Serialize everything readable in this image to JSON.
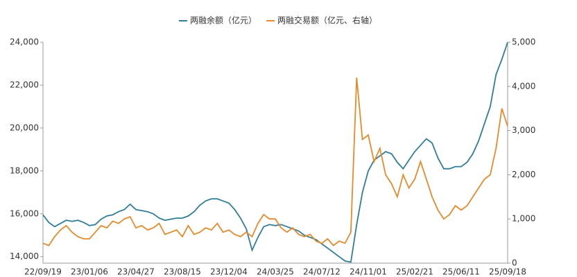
{
  "chart_data": {
    "type": "line",
    "categories": [
      "22/09/19",
      null,
      null,
      null,
      null,
      null,
      null,
      null,
      "23/01/06",
      null,
      null,
      null,
      null,
      null,
      null,
      null,
      "23/04/27",
      null,
      null,
      null,
      null,
      null,
      null,
      null,
      "23/08/15",
      null,
      null,
      null,
      null,
      null,
      null,
      null,
      "23/12/04",
      null,
      null,
      null,
      null,
      null,
      null,
      null,
      "24/03/25",
      null,
      null,
      null,
      null,
      null,
      null,
      null,
      "24/07/12",
      null,
      null,
      null,
      null,
      null,
      null,
      null,
      "24/11/01",
      null,
      null,
      null,
      null,
      null,
      null,
      null,
      "25/02/21",
      null,
      null,
      null,
      null,
      null,
      null,
      null,
      "25/06/11",
      null,
      null,
      null,
      null,
      null,
      null,
      null,
      "25/09/18"
    ],
    "series": [
      {
        "name": "两融余额（亿元）",
        "color": "#2e7d9a",
        "axis": "y",
        "values": [
          15950,
          15600,
          15400,
          15550,
          15700,
          15650,
          15700,
          15600,
          15450,
          15500,
          15750,
          15900,
          15950,
          16100,
          16200,
          16450,
          16200,
          16150,
          16100,
          16000,
          15800,
          15700,
          15750,
          15800,
          15800,
          15900,
          16100,
          16400,
          16600,
          16700,
          16700,
          16600,
          16500,
          16200,
          15800,
          15300,
          14300,
          14900,
          15400,
          15500,
          15450,
          15500,
          15400,
          15300,
          15200,
          15000,
          14900,
          14800,
          14600,
          14400,
          14200,
          14000,
          13800,
          13750,
          15500,
          17000,
          18000,
          18500,
          18700,
          18900,
          18800,
          18400,
          18100,
          18500,
          18900,
          19200,
          19500,
          19300,
          18600,
          18100,
          18100,
          18200,
          18200,
          18400,
          18800,
          19400,
          20200,
          21000,
          22500,
          23200,
          24000
        ]
      },
      {
        "name": "两融交易额（亿元、右轴）",
        "color": "#e8892a",
        "axis": "y2",
        "values": [
          450,
          400,
          600,
          750,
          850,
          700,
          600,
          550,
          550,
          700,
          850,
          800,
          950,
          900,
          1000,
          1050,
          800,
          850,
          750,
          800,
          900,
          650,
          700,
          750,
          600,
          850,
          650,
          700,
          800,
          750,
          900,
          700,
          750,
          650,
          600,
          700,
          600,
          900,
          1100,
          1000,
          1000,
          800,
          700,
          800,
          650,
          600,
          650,
          500,
          450,
          550,
          400,
          500,
          450,
          700,
          4200,
          2800,
          2900,
          2300,
          2600,
          2000,
          1800,
          1500,
          2000,
          1700,
          1900,
          2300,
          1900,
          1500,
          1200,
          1000,
          1100,
          1300,
          1200,
          1300,
          1500,
          1700,
          1900,
          2000,
          2600,
          3500,
          3100
        ]
      }
    ],
    "ylim": [
      13700,
      24000
    ],
    "yticks": [
      {
        "value": 14000,
        "label": "14,000"
      },
      {
        "value": 16000,
        "label": "16,000"
      },
      {
        "value": 18000,
        "label": "18,000"
      },
      {
        "value": 20000,
        "label": "20,000"
      },
      {
        "value": 22000,
        "label": "22,000"
      },
      {
        "value": 24000,
        "label": "24,000"
      }
    ],
    "y2lim": [
      0,
      5000
    ],
    "y2ticks": [
      0,
      {
        "value": 1000,
        "label": "1,000"
      },
      {
        "value": 2000,
        "label": "2,000"
      },
      {
        "value": 3000,
        "label": "3,000"
      },
      {
        "value": 4000,
        "label": "4,000"
      },
      {
        "value": 5000,
        "label": "5,000"
      }
    ]
  }
}
